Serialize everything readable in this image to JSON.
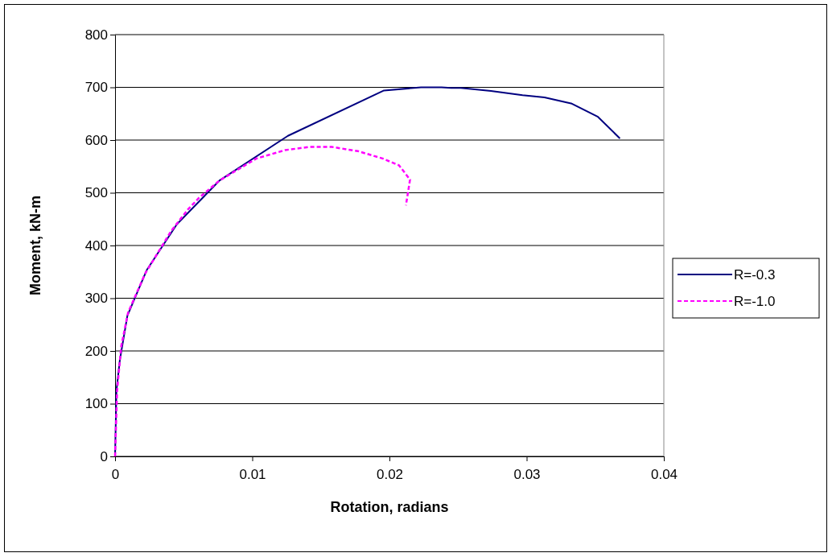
{
  "chart_data": {
    "type": "line",
    "xlabel": "Rotation, radians",
    "ylabel": "Moment, kN-m",
    "xlim": [
      0,
      0.04
    ],
    "xticks": [
      0,
      0.01,
      0.02,
      0.03,
      0.04
    ],
    "ylim": [
      0,
      800
    ],
    "yticks": [
      0,
      100,
      200,
      300,
      400,
      500,
      600,
      700,
      800
    ],
    "grid": "y",
    "legend": "right",
    "marker": "none",
    "series": [
      {
        "name": "R=-0.3",
        "color": "#000080",
        "line_style": "solid",
        "x": [
          0,
          0.0001,
          0.00035,
          0.0009,
          0.0023,
          0.0045,
          0.0076,
          0.0126,
          0.0196,
          0.0223,
          0.0238,
          0.0245,
          0.0252,
          0.0274,
          0.0297,
          0.0313,
          0.0333,
          0.0352,
          0.0368
        ],
        "values": [
          0,
          125,
          183,
          267,
          353,
          440,
          523,
          608,
          694,
          700,
          700,
          699,
          699,
          693,
          685,
          681,
          669,
          644,
          603
        ]
      },
      {
        "name": "R=-1.0",
        "color": "#ff00ff",
        "line_style": "dashed",
        "x": [
          0,
          0.00015,
          0.00045,
          0.00095,
          0.0022,
          0.0041,
          0.0053,
          0.0061,
          0.0076,
          0.0103,
          0.0124,
          0.0142,
          0.0158,
          0.0177,
          0.0195,
          0.0207,
          0.0215,
          0.0212
        ],
        "values": [
          0,
          125,
          209,
          273,
          347,
          428,
          468,
          490,
          523,
          565,
          581,
          587,
          587,
          579,
          565,
          552,
          525,
          476
        ]
      }
    ]
  }
}
